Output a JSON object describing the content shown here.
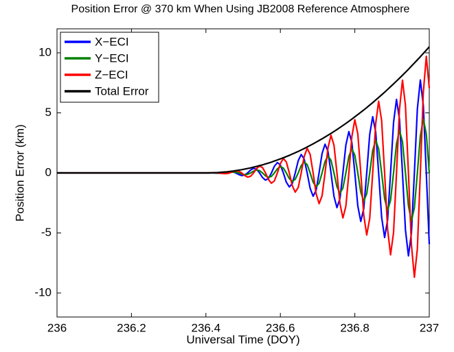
{
  "chart_data": {
    "type": "line",
    "title": "Position Error @ 370 km When Using JB2008 Reference Atmosphere",
    "xlabel": "Universal Time (DOY)",
    "ylabel": "Position Error (km)",
    "x": [
      236,
      236.1,
      236.2,
      236.3,
      236.4,
      236.408,
      236.416,
      236.424,
      236.432,
      236.44,
      236.448,
      236.456,
      236.464,
      236.472,
      236.48,
      236.488,
      236.496,
      236.504,
      236.512,
      236.52,
      236.528,
      236.536,
      236.544,
      236.552,
      236.56,
      236.568,
      236.576,
      236.584,
      236.592,
      236.6,
      236.608,
      236.616,
      236.624,
      236.632,
      236.64,
      236.648,
      236.656,
      236.664,
      236.672,
      236.68,
      236.688,
      236.696,
      236.704,
      236.712,
      236.72,
      236.728,
      236.736,
      236.744,
      236.752,
      236.76,
      236.768,
      236.776,
      236.784,
      236.792,
      236.8,
      236.808,
      236.816,
      236.824,
      236.832,
      236.84,
      236.848,
      236.856,
      236.864,
      236.872,
      236.88,
      236.888,
      236.896,
      236.904,
      236.912,
      236.92,
      236.928,
      236.936,
      236.944,
      236.952,
      236.96,
      236.968,
      236.976,
      236.984,
      236.992,
      237
    ],
    "series": [
      {
        "name": "X−ECI",
        "color": "#0000ff",
        "values": [
          0,
          0,
          0,
          0,
          0,
          0,
          0,
          -0.01,
          -0.02,
          -0.03,
          0,
          0.05,
          0.1,
          0.09,
          0,
          -0.13,
          -0.22,
          -0.18,
          0,
          0.24,
          0.38,
          0.31,
          0,
          -0.38,
          -0.6,
          -0.47,
          0,
          0.56,
          0.86,
          0.66,
          0,
          -0.77,
          -1.17,
          -0.89,
          0,
          1.02,
          1.53,
          1.15,
          0,
          -1.29,
          -1.94,
          -1.45,
          0,
          1.61,
          2.39,
          1.78,
          0,
          -1.95,
          -2.89,
          -2.14,
          0,
          2.33,
          3.44,
          2.54,
          0,
          -2.75,
          -4.04,
          -2.97,
          0,
          3.2,
          4.68,
          3.43,
          0,
          -3.68,
          -5.38,
          -3.93,
          0,
          4.19,
          6.12,
          4.46,
          0,
          -4.74,
          -6.91,
          -5.03,
          0,
          5.33,
          7.74,
          5.63,
          0,
          -5.94
        ]
      },
      {
        "name": "Y−ECI",
        "color": "#008000",
        "values": [
          0,
          0,
          0,
          0,
          0,
          0,
          0,
          0,
          -0.01,
          -0.02,
          -0.02,
          0,
          0.04,
          0.07,
          0.06,
          0,
          -0.09,
          -0.14,
          -0.12,
          0,
          0.15,
          0.24,
          0.19,
          0,
          -0.24,
          -0.37,
          -0.29,
          0,
          0.34,
          0.53,
          0.4,
          0,
          -0.47,
          -0.71,
          -0.53,
          0,
          0.61,
          0.91,
          0.69,
          0,
          -0.77,
          -1.15,
          -0.86,
          0,
          0.95,
          1.41,
          1.05,
          0,
          -1.15,
          -1.7,
          -1.26,
          0,
          1.37,
          2.02,
          1.48,
          0,
          -1.61,
          -2.36,
          -1.73,
          0,
          1.86,
          2.73,
          2,
          0,
          -2.14,
          -3.13,
          -2.28,
          0,
          2.43,
          3.55,
          2.59,
          0,
          -2.74,
          -4,
          -2.91,
          0,
          3.08,
          4.48,
          3.25,
          0
        ]
      },
      {
        "name": "Z−ECI",
        "color": "#ff0000",
        "values": [
          0,
          0,
          0,
          0,
          0,
          0,
          0.01,
          0.01,
          0,
          -0.03,
          -0.06,
          -0.06,
          0,
          0.1,
          0.18,
          0.15,
          0,
          -0.21,
          -0.35,
          -0.28,
          0,
          0.36,
          0.57,
          0.45,
          0,
          -0.55,
          -0.86,
          -0.66,
          0,
          0.78,
          1.2,
          0.91,
          0,
          -1.06,
          -1.6,
          -1.21,
          0,
          1.37,
          2.05,
          1.54,
          0,
          -1.72,
          -2.56,
          -1.91,
          0,
          2.11,
          3.13,
          2.32,
          0,
          -2.54,
          -3.75,
          -2.77,
          0,
          3.01,
          4.43,
          3.26,
          0,
          -3.52,
          -5.17,
          -3.79,
          0,
          4.08,
          5.97,
          4.37,
          0,
          -4.67,
          -6.82,
          -4.98,
          0,
          5.3,
          7.72,
          5.63,
          0,
          -5.97,
          -8.69,
          -6.32,
          0,
          6.68,
          9.71,
          7.06
        ]
      },
      {
        "name": "Total Error",
        "color": "#000000",
        "values": [
          0,
          0,
          0,
          0,
          0,
          0,
          0.01,
          0.02,
          0.03,
          0.05,
          0.07,
          0.09,
          0.12,
          0.15,
          0.19,
          0.23,
          0.27,
          0.32,
          0.37,
          0.42,
          0.48,
          0.54,
          0.61,
          0.67,
          0.75,
          0.82,
          0.9,
          0.99,
          1.08,
          1.17,
          1.26,
          1.36,
          1.46,
          1.57,
          1.68,
          1.79,
          1.91,
          2.03,
          2.16,
          2.29,
          2.42,
          2.56,
          2.7,
          2.84,
          2.99,
          3.14,
          3.29,
          3.45,
          3.61,
          3.78,
          3.95,
          4.12,
          4.3,
          4.48,
          4.67,
          4.86,
          5.05,
          5.24,
          5.44,
          5.65,
          5.85,
          6.07,
          6.28,
          6.5,
          6.72,
          6.95,
          7.18,
          7.41,
          7.65,
          7.89,
          8.13,
          8.38,
          8.63,
          8.89,
          9.15,
          9.41,
          9.68,
          9.95,
          10.22,
          10.5
        ]
      }
    ],
    "xlim": [
      236,
      237
    ],
    "xticks": [
      236,
      236.2,
      236.4,
      236.6,
      236.8,
      237
    ],
    "ylim": [
      -12,
      12
    ],
    "yticks": [
      -10,
      -5,
      0,
      5,
      10
    ],
    "legend": "upper left"
  }
}
